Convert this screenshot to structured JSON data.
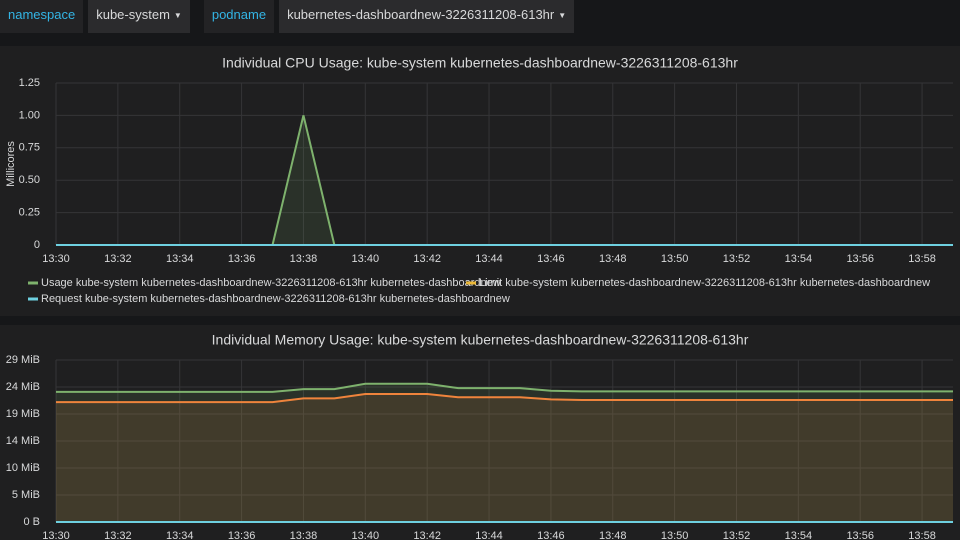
{
  "variables": [
    {
      "label": "namespace",
      "value": "kube-system"
    },
    {
      "label": "podname",
      "value": "kubernetes-dashboardnew-3226311208-613hr"
    }
  ],
  "chart_data": [
    {
      "type": "line",
      "title": "Individual CPU Usage: kube-system kubernetes-dashboardnew-3226311208-613hr",
      "y_label": "Millicores",
      "grid": true,
      "fill": true,
      "legend": "bottom",
      "x": [
        "13:30",
        "13:37",
        "13:38",
        "13:39",
        "13:59"
      ],
      "xlim": [
        "13:30",
        "13:59"
      ],
      "xticks": [
        "13:30",
        "13:32",
        "13:34",
        "13:36",
        "13:38",
        "13:40",
        "13:42",
        "13:44",
        "13:46",
        "13:48",
        "13:50",
        "13:52",
        "13:54",
        "13:56",
        "13:58"
      ],
      "ylim": [
        0,
        1.25
      ],
      "yticks": [
        0,
        0.25,
        {
          "value": 0.5,
          "label": "0.50"
        },
        0.75,
        {
          "value": 1,
          "label": "1.00"
        },
        1.25
      ],
      "series": [
        {
          "name": "Usage kube-system kubernetes-dashboardnew-3226311208-613hr kubernetes-dashboardnew",
          "color": "#7eb26d",
          "values": [
            0,
            0,
            1,
            0,
            0
          ]
        },
        {
          "name": "Limit kube-system kubernetes-dashboardnew-3226311208-613hr kubernetes-dashboardnew",
          "color": "#eab839",
          "values": [
            null,
            null,
            null,
            null,
            null
          ]
        },
        {
          "name": "Request kube-system kubernetes-dashboardnew-3226311208-613hr kubernetes-dashboardnew",
          "color": "#6ed0e0",
          "values": [
            0,
            0,
            0,
            0,
            0
          ]
        }
      ]
    },
    {
      "type": "line",
      "title": "Individual Memory Usage: kube-system kubernetes-dashboardnew-3226311208-613hr",
      "grid": true,
      "fill": true,
      "x": [
        "13:30",
        "13:37",
        "13:38",
        "13:39",
        "13:40",
        "13:42",
        "13:43",
        "13:45",
        "13:46",
        "13:47",
        "13:59"
      ],
      "xlim": [
        "13:30",
        "13:59"
      ],
      "xticks": [
        "13:30",
        "13:32",
        "13:34",
        "13:36",
        "13:38",
        "13:40",
        "13:42",
        "13:44",
        "13:46",
        "13:48",
        "13:50",
        "13:52",
        "13:54",
        "13:56",
        "13:58"
      ],
      "ylim": [
        0,
        30000000
      ],
      "yticks": [
        {
          "value": 0,
          "label": "0 B"
        },
        {
          "value": 5000000,
          "label": "5 MiB"
        },
        {
          "value": 10000000,
          "label": "10 MiB"
        },
        {
          "value": 15000000,
          "label": "14 MiB"
        },
        {
          "value": 20000000,
          "label": "19 MiB"
        },
        {
          "value": 25000000,
          "label": "24 MiB"
        },
        {
          "value": 30000000,
          "label": "29 MiB"
        }
      ],
      "series": [
        {
          "color": "#7eb26d",
          "values": [
            24100000,
            24100000,
            24600000,
            24600000,
            25600000,
            25600000,
            24800000,
            24800000,
            24300000,
            24200000,
            24200000
          ]
        },
        {
          "color": "#ef843c",
          "values": [
            22200000,
            22200000,
            22900000,
            22900000,
            23700000,
            23700000,
            23100000,
            23100000,
            22700000,
            22600000,
            22600000
          ]
        },
        {
          "color": "#6ed0e0",
          "values": [
            0,
            0,
            0,
            0,
            0,
            0,
            0,
            0,
            0,
            0,
            0
          ]
        }
      ]
    }
  ]
}
